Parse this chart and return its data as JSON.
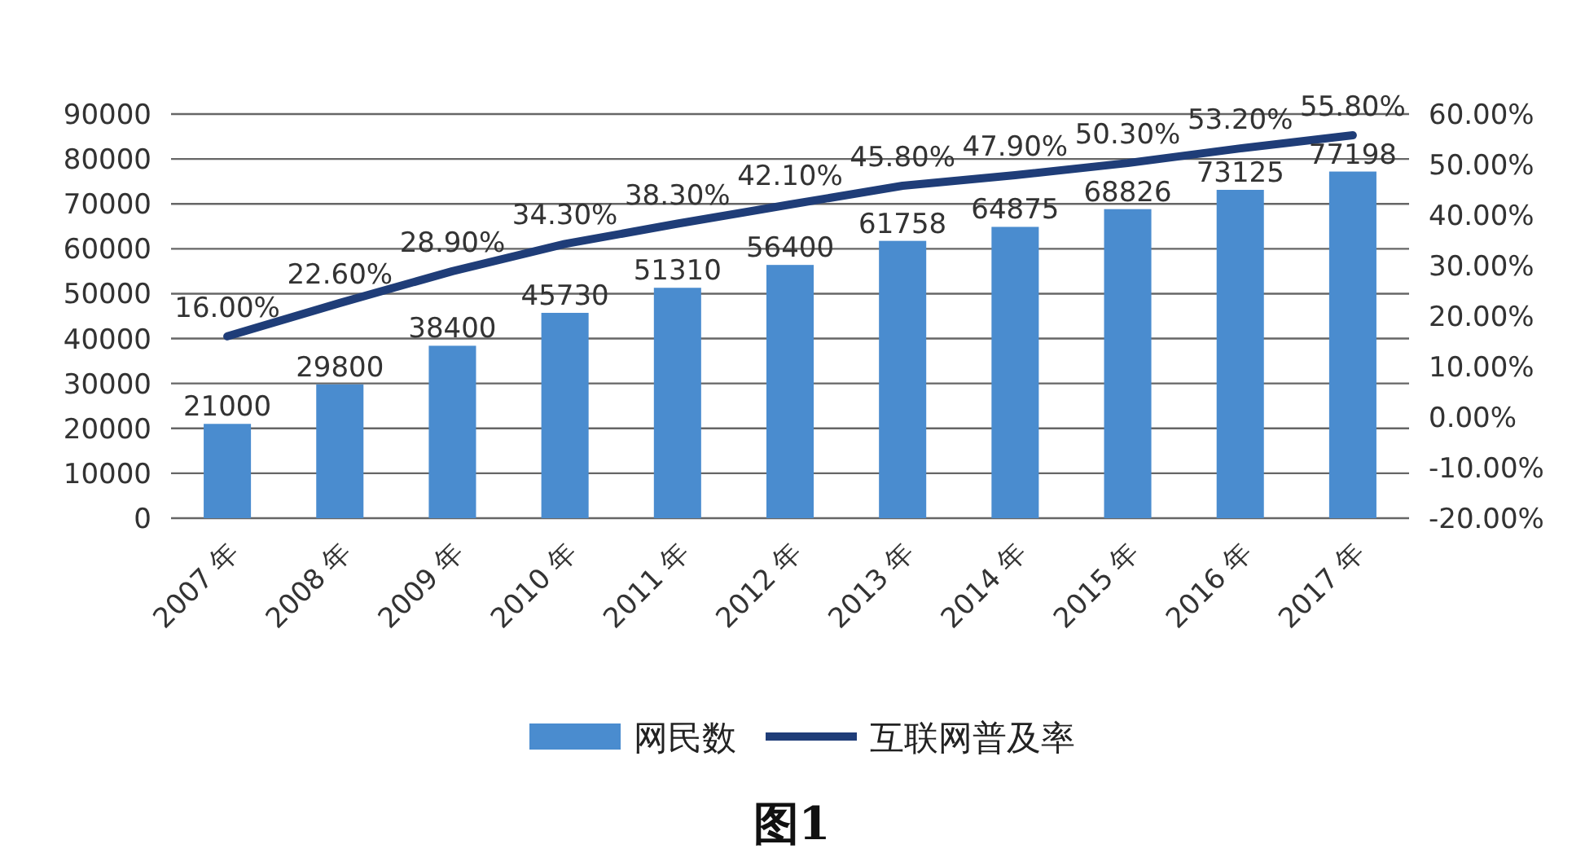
{
  "chart_data": {
    "type": "bar",
    "categories": [
      "2007 年",
      "2008 年",
      "2009 年",
      "2010 年",
      "2011 年",
      "2012 年",
      "2013 年",
      "2014 年",
      "2015 年",
      "2016 年",
      "2017 年"
    ],
    "series": [
      {
        "name": "网民数",
        "color": "#4a8ccf",
        "values": [
          21000,
          29800,
          38400,
          45730,
          51310,
          56400,
          61758,
          64875,
          68826,
          73125,
          77198
        ],
        "value_labels": [
          "21000",
          "29800",
          "38400",
          "45730",
          "51310",
          "56400",
          "61758",
          "64875",
          "68826",
          "73125",
          "77198"
        ]
      },
      {
        "name": "互联网普及率",
        "type": "line",
        "axis": "y2",
        "color": "#1f3d78",
        "values": [
          16.0,
          22.6,
          28.9,
          34.3,
          38.3,
          42.1,
          45.8,
          47.9,
          50.3,
          53.2,
          55.8
        ],
        "value_labels": [
          "16.00%",
          "22.60%",
          "28.90%",
          "34.30%",
          "38.30%",
          "42.10%",
          "45.80%",
          "47.90%",
          "50.30%",
          "53.20%",
          "55.80%"
        ]
      }
    ],
    "ylim": [
      0,
      90000
    ],
    "yticks": [
      0,
      10000,
      20000,
      30000,
      40000,
      50000,
      60000,
      70000,
      80000,
      90000
    ],
    "y2lim": [
      -20,
      60
    ],
    "y2ticks": [
      {
        "value": 60,
        "label": "60.00%"
      },
      {
        "value": 50,
        "label": "50.00%"
      },
      {
        "value": 40,
        "label": "40.00%"
      },
      {
        "value": 30,
        "label": "30.00%"
      },
      {
        "value": 20,
        "label": "20.00%"
      },
      {
        "value": 10,
        "label": "10.00%"
      },
      {
        "value": 0,
        "label": "0.00%"
      },
      {
        "value": -10,
        "label": "-10.00%"
      },
      {
        "value": -20,
        "label": "-20.00%"
      }
    ],
    "grid": "y",
    "legend": "bottom",
    "annotations": [
      "图1"
    ]
  }
}
